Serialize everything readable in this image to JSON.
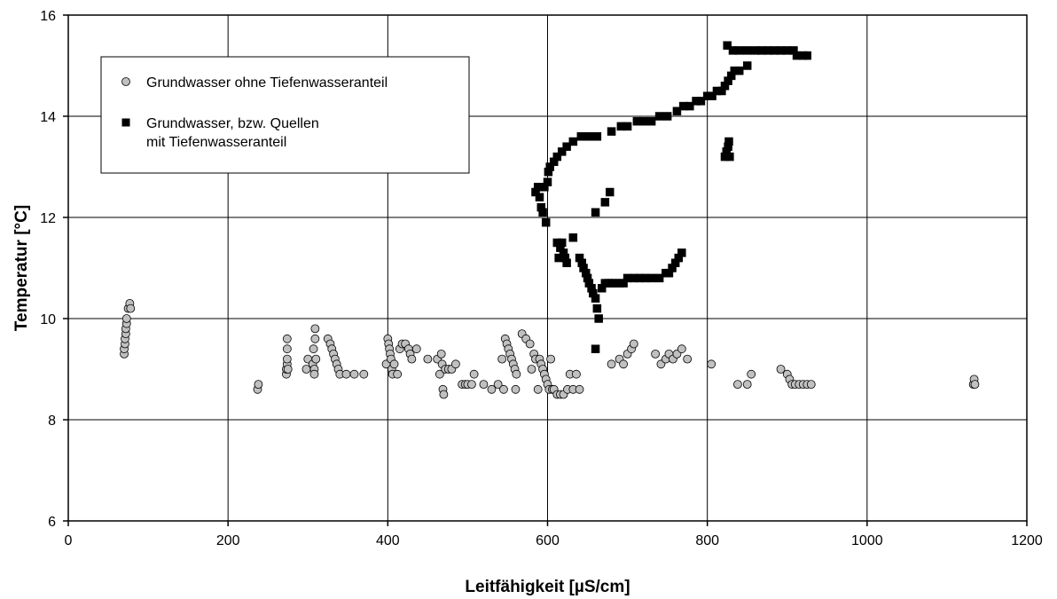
{
  "chart_data": {
    "type": "scatter",
    "title": "",
    "xlabel": "Leitfähigkeit [µS/cm]",
    "ylabel": "Temperatur [°C]",
    "xlim": [
      0,
      1200
    ],
    "ylim": [
      6,
      16
    ],
    "xticks": [
      0,
      200,
      400,
      600,
      800,
      1000,
      1200
    ],
    "yticks": [
      6,
      8,
      10,
      12,
      14,
      16
    ],
    "grid": true,
    "legend_position": "top-left",
    "series": [
      {
        "name": "Grundwasser ohne Tiefenwasseranteil",
        "name_lines": [
          "Grundwasser ohne Tiefenwasseranteil"
        ],
        "marker": "circle",
        "fill": "#c0c0c0",
        "stroke": "#000000",
        "points": [
          [
            70,
            9.3
          ],
          [
            70,
            9.4
          ],
          [
            71,
            9.5
          ],
          [
            71,
            9.6
          ],
          [
            72,
            9.7
          ],
          [
            72,
            9.8
          ],
          [
            73,
            9.9
          ],
          [
            73,
            10.0
          ],
          [
            75,
            10.2
          ],
          [
            77,
            10.3
          ],
          [
            78,
            10.2
          ],
          [
            237,
            8.6
          ],
          [
            238,
            8.7
          ],
          [
            273,
            8.9
          ],
          [
            273,
            9.0
          ],
          [
            274,
            9.1
          ],
          [
            274,
            9.2
          ],
          [
            274,
            9.4
          ],
          [
            274,
            9.6
          ],
          [
            275,
            9.0
          ],
          [
            298,
            9.0
          ],
          [
            300,
            9.2
          ],
          [
            306,
            9.1
          ],
          [
            307,
            9.4
          ],
          [
            308,
            9.0
          ],
          [
            308,
            8.9
          ],
          [
            309,
            9.6
          ],
          [
            309,
            9.8
          ],
          [
            310,
            9.2
          ],
          [
            325,
            9.6
          ],
          [
            328,
            9.5
          ],
          [
            330,
            9.4
          ],
          [
            332,
            9.3
          ],
          [
            334,
            9.2
          ],
          [
            336,
            9.1
          ],
          [
            338,
            9.0
          ],
          [
            340,
            8.9
          ],
          [
            348,
            8.9
          ],
          [
            358,
            8.9
          ],
          [
            370,
            8.9
          ],
          [
            398,
            9.1
          ],
          [
            400,
            9.6
          ],
          [
            401,
            9.5
          ],
          [
            402,
            9.4
          ],
          [
            403,
            9.3
          ],
          [
            404,
            9.2
          ],
          [
            405,
            9.0
          ],
          [
            406,
            8.9
          ],
          [
            408,
            9.1
          ],
          [
            412,
            8.9
          ],
          [
            415,
            9.4
          ],
          [
            418,
            9.5
          ],
          [
            422,
            9.5
          ],
          [
            426,
            9.4
          ],
          [
            428,
            9.3
          ],
          [
            430,
            9.2
          ],
          [
            436,
            9.4
          ],
          [
            450,
            9.2
          ],
          [
            462,
            9.2
          ],
          [
            465,
            8.9
          ],
          [
            467,
            9.3
          ],
          [
            468,
            9.1
          ],
          [
            469,
            8.6
          ],
          [
            470,
            8.5
          ],
          [
            472,
            9.0
          ],
          [
            476,
            9.0
          ],
          [
            480,
            9.0
          ],
          [
            485,
            9.1
          ],
          [
            493,
            8.7
          ],
          [
            497,
            8.7
          ],
          [
            500,
            8.7
          ],
          [
            505,
            8.7
          ],
          [
            508,
            8.9
          ],
          [
            520,
            8.7
          ],
          [
            530,
            8.6
          ],
          [
            538,
            8.7
          ],
          [
            543,
            9.2
          ],
          [
            545,
            8.6
          ],
          [
            547,
            9.6
          ],
          [
            549,
            9.5
          ],
          [
            551,
            9.4
          ],
          [
            553,
            9.3
          ],
          [
            555,
            9.2
          ],
          [
            557,
            9.1
          ],
          [
            559,
            9.0
          ],
          [
            560,
            8.6
          ],
          [
            561,
            8.9
          ],
          [
            568,
            9.7
          ],
          [
            573,
            9.6
          ],
          [
            578,
            9.5
          ],
          [
            580,
            9.0
          ],
          [
            583,
            9.3
          ],
          [
            585,
            9.2
          ],
          [
            588,
            8.6
          ],
          [
            590,
            9.2
          ],
          [
            592,
            9.1
          ],
          [
            594,
            9.0
          ],
          [
            596,
            8.9
          ],
          [
            598,
            8.8
          ],
          [
            600,
            8.7
          ],
          [
            602,
            8.6
          ],
          [
            604,
            9.2
          ],
          [
            606,
            8.6
          ],
          [
            608,
            8.6
          ],
          [
            612,
            8.5
          ],
          [
            616,
            8.5
          ],
          [
            620,
            8.5
          ],
          [
            625,
            8.6
          ],
          [
            628,
            8.9
          ],
          [
            632,
            8.6
          ],
          [
            636,
            8.9
          ],
          [
            640,
            8.6
          ],
          [
            680,
            9.1
          ],
          [
            690,
            9.2
          ],
          [
            695,
            9.1
          ],
          [
            700,
            9.3
          ],
          [
            705,
            9.4
          ],
          [
            708,
            9.5
          ],
          [
            735,
            9.3
          ],
          [
            742,
            9.1
          ],
          [
            748,
            9.2
          ],
          [
            752,
            9.3
          ],
          [
            757,
            9.2
          ],
          [
            762,
            9.3
          ],
          [
            768,
            9.4
          ],
          [
            775,
            9.2
          ],
          [
            805,
            9.1
          ],
          [
            838,
            8.7
          ],
          [
            850,
            8.7
          ],
          [
            855,
            8.9
          ],
          [
            892,
            9.0
          ],
          [
            900,
            8.9
          ],
          [
            903,
            8.8
          ],
          [
            906,
            8.7
          ],
          [
            910,
            8.7
          ],
          [
            915,
            8.7
          ],
          [
            920,
            8.7
          ],
          [
            925,
            8.7
          ],
          [
            930,
            8.7
          ],
          [
            1133,
            8.7
          ],
          [
            1134,
            8.8
          ],
          [
            1135,
            8.7
          ]
        ]
      },
      {
        "name": "Grundwasser, bzw. Quellen mit Tiefenwasseranteil",
        "name_lines": [
          "Grundwasser, bzw. Quellen",
          "mit Tiefenwasseranteil"
        ],
        "marker": "square",
        "fill": "#000000",
        "stroke": "#000000",
        "points": [
          [
            585,
            12.5
          ],
          [
            588,
            12.6
          ],
          [
            590,
            12.4
          ],
          [
            592,
            12.2
          ],
          [
            594,
            12.1
          ],
          [
            596,
            12.6
          ],
          [
            598,
            11.9
          ],
          [
            600,
            12.7
          ],
          [
            601,
            12.9
          ],
          [
            603,
            13.0
          ],
          [
            608,
            13.1
          ],
          [
            612,
            13.2
          ],
          [
            618,
            13.3
          ],
          [
            624,
            13.4
          ],
          [
            632,
            13.5
          ],
          [
            642,
            13.6
          ],
          [
            652,
            13.6
          ],
          [
            662,
            13.6
          ],
          [
            680,
            13.7
          ],
          [
            692,
            13.8
          ],
          [
            700,
            13.8
          ],
          [
            712,
            13.9
          ],
          [
            720,
            13.9
          ],
          [
            730,
            13.9
          ],
          [
            740,
            14.0
          ],
          [
            750,
            14.0
          ],
          [
            762,
            14.1
          ],
          [
            770,
            14.2
          ],
          [
            778,
            14.2
          ],
          [
            786,
            14.3
          ],
          [
            792,
            14.3
          ],
          [
            800,
            14.4
          ],
          [
            806,
            14.4
          ],
          [
            812,
            14.5
          ],
          [
            818,
            14.5
          ],
          [
            822,
            14.6
          ],
          [
            826,
            14.7
          ],
          [
            830,
            14.8
          ],
          [
            834,
            14.9
          ],
          [
            840,
            14.9
          ],
          [
            850,
            15.0
          ],
          [
            825,
            15.4
          ],
          [
            832,
            15.3
          ],
          [
            840,
            15.3
          ],
          [
            850,
            15.3
          ],
          [
            860,
            15.3
          ],
          [
            868,
            15.3
          ],
          [
            876,
            15.3
          ],
          [
            884,
            15.3
          ],
          [
            892,
            15.3
          ],
          [
            900,
            15.3
          ],
          [
            908,
            15.3
          ],
          [
            912,
            15.2
          ],
          [
            920,
            15.2
          ],
          [
            925,
            15.2
          ],
          [
            822,
            13.2
          ],
          [
            824,
            13.3
          ],
          [
            826,
            13.4
          ],
          [
            827,
            13.5
          ],
          [
            828,
            13.2
          ],
          [
            612,
            11.5
          ],
          [
            614,
            11.2
          ],
          [
            616,
            11.4
          ],
          [
            618,
            11.5
          ],
          [
            620,
            11.3
          ],
          [
            622,
            11.2
          ],
          [
            624,
            11.1
          ],
          [
            632,
            11.6
          ],
          [
            640,
            11.2
          ],
          [
            643,
            11.1
          ],
          [
            645,
            11.0
          ],
          [
            648,
            10.9
          ],
          [
            650,
            10.8
          ],
          [
            652,
            10.7
          ],
          [
            655,
            10.6
          ],
          [
            657,
            10.5
          ],
          [
            660,
            10.4
          ],
          [
            662,
            10.2
          ],
          [
            664,
            10.0
          ],
          [
            660,
            9.4
          ],
          [
            668,
            10.6
          ],
          [
            672,
            10.7
          ],
          [
            676,
            10.7
          ],
          [
            680,
            10.7
          ],
          [
            685,
            10.7
          ],
          [
            690,
            10.7
          ],
          [
            695,
            10.7
          ],
          [
            700,
            10.8
          ],
          [
            708,
            10.8
          ],
          [
            715,
            10.8
          ],
          [
            722,
            10.8
          ],
          [
            730,
            10.8
          ],
          [
            740,
            10.8
          ],
          [
            748,
            10.9
          ],
          [
            752,
            10.9
          ],
          [
            756,
            11.0
          ],
          [
            760,
            11.1
          ],
          [
            764,
            11.2
          ],
          [
            768,
            11.3
          ],
          [
            660,
            12.1
          ],
          [
            672,
            12.3
          ],
          [
            678,
            12.5
          ]
        ]
      }
    ]
  }
}
